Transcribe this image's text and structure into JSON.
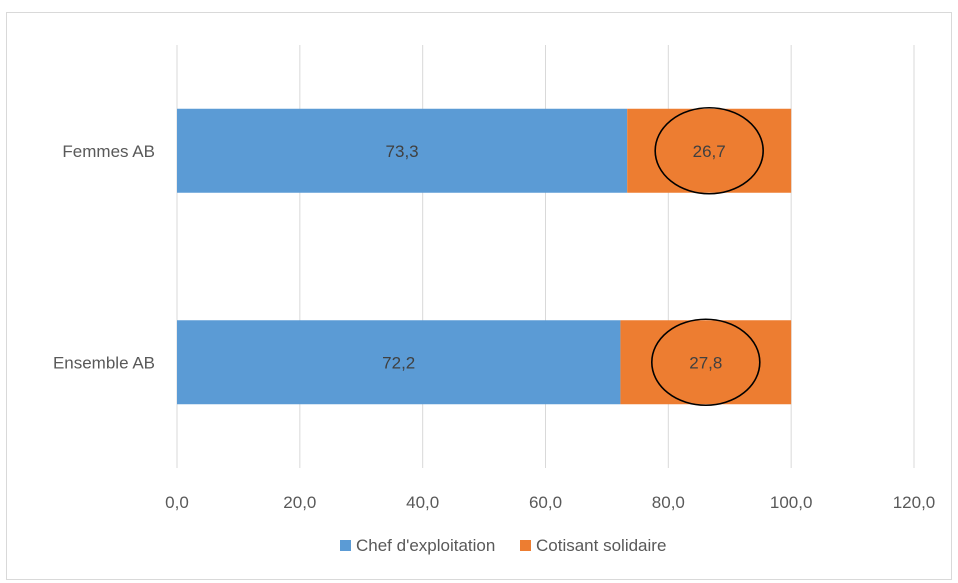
{
  "chart_data": {
    "type": "bar",
    "orientation": "horizontal",
    "stacked": true,
    "categories": [
      "Femmes AB",
      "Ensemble AB"
    ],
    "series": [
      {
        "name": "Chef d'exploitation",
        "values": [
          73.3,
          72.2
        ],
        "labels": [
          "73,3",
          "72,2"
        ],
        "color": "#5b9bd5"
      },
      {
        "name": "Cotisant solidaire",
        "values": [
          26.7,
          27.8
        ],
        "labels": [
          "26,7",
          "27,8"
        ],
        "color": "#ed7d31",
        "highlighted": true
      }
    ],
    "xlim": [
      0,
      120
    ],
    "xticks": [
      0,
      20,
      40,
      60,
      80,
      100,
      120
    ],
    "xtick_labels": [
      "0,0",
      "20,0",
      "40,0",
      "60,0",
      "80,0",
      "100,0",
      "120,0"
    ],
    "grid": "vertical",
    "legend_position": "bottom"
  }
}
